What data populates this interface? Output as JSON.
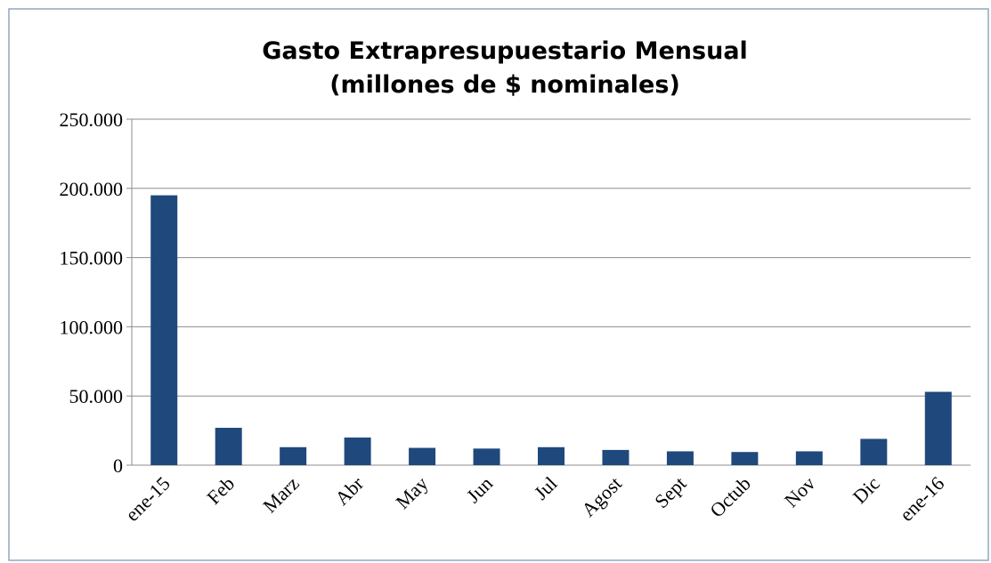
{
  "chart_data": {
    "type": "bar",
    "title": [
      "Gasto Extrapresupuestario Mensual",
      "(millones de $ nominales)"
    ],
    "categories": [
      "ene-15",
      "Feb",
      "Marz",
      "Abr",
      "May",
      "Jun",
      "Jul",
      "Agost",
      "Sept",
      "Octub",
      "Nov",
      "Dic",
      "ene-16"
    ],
    "values": [
      195000,
      27000,
      13000,
      20000,
      12500,
      12000,
      13000,
      11000,
      10000,
      9500,
      10000,
      19000,
      53000
    ],
    "color": "#1f497d",
    "ylim": [
      0,
      250000
    ],
    "yticks": [
      0,
      {
        "value": 50000,
        "label": "50.000"
      },
      {
        "value": 100000,
        "label": "100.000"
      },
      {
        "value": 150000,
        "label": "150.000"
      },
      {
        "value": 200000,
        "label": "200.000"
      },
      {
        "value": 250000,
        "label": "250.000"
      }
    ],
    "grid": true
  }
}
